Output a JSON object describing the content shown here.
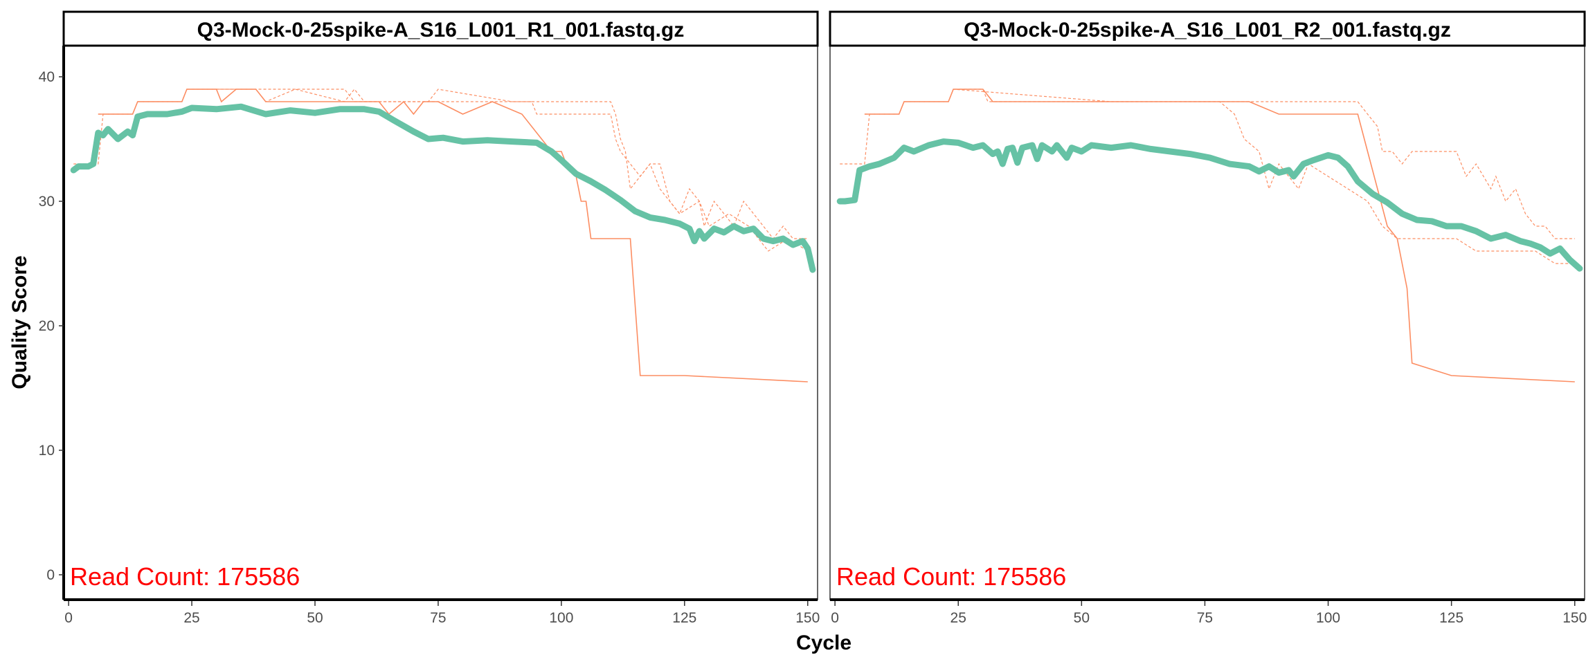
{
  "chart_data": {
    "type": "heatmap",
    "xlabel": "Cycle",
    "ylabel": "Quality Score",
    "xlim": [
      -1,
      152
    ],
    "ylim": [
      -2,
      42.5
    ],
    "x_ticks": [
      0,
      25,
      50,
      75,
      100,
      125,
      150
    ],
    "y_ticks": [
      0,
      10,
      20,
      30,
      40
    ],
    "colors": {
      "mean_line": "#66c2a5",
      "quartile_lines": "#fc8d62",
      "read_count_text": "#ff0000",
      "heat_low": "#f7f7f7",
      "heat_high": "#000000"
    },
    "panels": [
      {
        "title": "Q3-Mock-0-25spike-A_S16_L001_R1_001.fastq.gz",
        "read_count_text": "Read Count:  175586",
        "mean_quality": [
          [
            1,
            32.5
          ],
          [
            2,
            32.8
          ],
          [
            4,
            32.8
          ],
          [
            5,
            33.0
          ],
          [
            6,
            35.5
          ],
          [
            7,
            35.3
          ],
          [
            8,
            35.8
          ],
          [
            10,
            35.0
          ],
          [
            12,
            35.6
          ],
          [
            13,
            35.3
          ],
          [
            14,
            36.8
          ],
          [
            16,
            37.0
          ],
          [
            20,
            37.0
          ],
          [
            23,
            37.2
          ],
          [
            25,
            37.5
          ],
          [
            30,
            37.4
          ],
          [
            35,
            37.6
          ],
          [
            40,
            37.0
          ],
          [
            45,
            37.3
          ],
          [
            50,
            37.1
          ],
          [
            55,
            37.4
          ],
          [
            60,
            37.4
          ],
          [
            63,
            37.2
          ],
          [
            66,
            36.5
          ],
          [
            70,
            35.6
          ],
          [
            73,
            35.0
          ],
          [
            76,
            35.1
          ],
          [
            80,
            34.8
          ],
          [
            85,
            34.9
          ],
          [
            90,
            34.8
          ],
          [
            95,
            34.7
          ],
          [
            98,
            34.0
          ],
          [
            100,
            33.3
          ],
          [
            103,
            32.2
          ],
          [
            106,
            31.6
          ],
          [
            109,
            30.9
          ],
          [
            112,
            30.1
          ],
          [
            115,
            29.2
          ],
          [
            118,
            28.7
          ],
          [
            121,
            28.5
          ],
          [
            124,
            28.2
          ],
          [
            126,
            27.8
          ],
          [
            127,
            26.8
          ],
          [
            128,
            27.6
          ],
          [
            129,
            27.0
          ],
          [
            131,
            27.8
          ],
          [
            133,
            27.5
          ],
          [
            135,
            28.0
          ],
          [
            137,
            27.6
          ],
          [
            139,
            27.8
          ],
          [
            141,
            27.0
          ],
          [
            143,
            26.8
          ],
          [
            145,
            27.0
          ],
          [
            147,
            26.5
          ],
          [
            149,
            26.8
          ],
          [
            150,
            26.2
          ],
          [
            151,
            24.5
          ]
        ],
        "upper_quartile": [
          [
            6,
            37
          ],
          [
            13,
            37
          ],
          [
            14,
            38
          ],
          [
            23,
            38
          ],
          [
            24,
            39
          ],
          [
            38,
            39
          ],
          [
            40,
            38
          ],
          [
            46,
            39
          ],
          [
            56,
            38
          ],
          [
            58,
            39
          ],
          [
            60,
            38
          ],
          [
            73,
            38
          ],
          [
            75,
            39
          ],
          [
            90,
            38
          ],
          [
            110,
            38
          ],
          [
            111,
            37
          ],
          [
            112,
            35
          ],
          [
            113,
            34
          ],
          [
            114,
            31
          ],
          [
            116,
            32
          ],
          [
            118,
            33
          ],
          [
            120,
            33
          ],
          [
            122,
            30
          ],
          [
            124,
            29
          ],
          [
            126,
            31
          ],
          [
            128,
            30
          ],
          [
            129,
            28
          ],
          [
            131,
            30
          ],
          [
            133,
            29
          ],
          [
            135,
            28
          ],
          [
            137,
            30
          ],
          [
            139,
            29
          ],
          [
            141,
            28
          ],
          [
            143,
            27
          ],
          [
            145,
            28
          ],
          [
            147,
            27
          ],
          [
            150,
            27
          ]
        ],
        "median": [
          [
            6,
            37
          ],
          [
            13,
            37
          ],
          [
            14,
            38
          ],
          [
            23,
            38
          ],
          [
            24,
            39
          ],
          [
            30,
            39
          ],
          [
            31,
            38
          ],
          [
            34,
            39
          ],
          [
            38,
            39
          ],
          [
            40,
            38
          ],
          [
            63,
            38
          ],
          [
            65,
            37
          ],
          [
            68,
            38
          ],
          [
            70,
            37
          ],
          [
            72,
            38
          ],
          [
            75,
            38
          ],
          [
            80,
            37
          ],
          [
            86,
            38
          ],
          [
            92,
            37
          ],
          [
            96,
            35
          ],
          [
            98,
            34
          ],
          [
            100,
            34
          ],
          [
            101,
            33
          ],
          [
            103,
            32
          ],
          [
            104,
            30
          ],
          [
            105,
            30
          ],
          [
            106,
            27
          ],
          [
            112,
            27
          ],
          [
            114,
            27
          ],
          [
            116,
            16
          ],
          [
            125,
            16
          ],
          [
            150,
            15.5
          ]
        ],
        "lower_quartile": [
          [
            1,
            33
          ],
          [
            6,
            33
          ],
          [
            7,
            37
          ],
          [
            13,
            37
          ],
          [
            14,
            38
          ],
          [
            23,
            38
          ],
          [
            24,
            39
          ],
          [
            56,
            39
          ],
          [
            58,
            38
          ],
          [
            94,
            38
          ],
          [
            95,
            37
          ],
          [
            110,
            37
          ],
          [
            111,
            35
          ],
          [
            112,
            34
          ],
          [
            114,
            33
          ],
          [
            116,
            32
          ],
          [
            118,
            33
          ],
          [
            120,
            31
          ],
          [
            124,
            29
          ],
          [
            128,
            30
          ],
          [
            130,
            28
          ],
          [
            134,
            29
          ],
          [
            138,
            28
          ],
          [
            142,
            26
          ],
          [
            146,
            27
          ],
          [
            150,
            26
          ]
        ],
        "frequency_matrix": []
      },
      {
        "title": "Q3-Mock-0-25spike-A_S16_L001_R2_001.fastq.gz",
        "read_count_text": "Read Count:  175586",
        "mean_quality": [
          [
            1,
            30.0
          ],
          [
            2,
            30.0
          ],
          [
            4,
            30.1
          ],
          [
            5,
            32.5
          ],
          [
            7,
            32.8
          ],
          [
            9,
            33.0
          ],
          [
            12,
            33.5
          ],
          [
            14,
            34.3
          ],
          [
            16,
            34.0
          ],
          [
            19,
            34.5
          ],
          [
            22,
            34.8
          ],
          [
            25,
            34.7
          ],
          [
            28,
            34.3
          ],
          [
            30,
            34.5
          ],
          [
            32,
            33.8
          ],
          [
            33,
            34.0
          ],
          [
            34,
            33.0
          ],
          [
            35,
            34.2
          ],
          [
            36,
            34.3
          ],
          [
            37,
            33.1
          ],
          [
            38,
            34.3
          ],
          [
            40,
            34.5
          ],
          [
            41,
            33.4
          ],
          [
            42,
            34.5
          ],
          [
            44,
            34.0
          ],
          [
            45,
            34.5
          ],
          [
            47,
            33.5
          ],
          [
            48,
            34.3
          ],
          [
            50,
            34.0
          ],
          [
            52,
            34.5
          ],
          [
            56,
            34.3
          ],
          [
            60,
            34.5
          ],
          [
            64,
            34.2
          ],
          [
            68,
            34.0
          ],
          [
            72,
            33.8
          ],
          [
            76,
            33.5
          ],
          [
            80,
            33.0
          ],
          [
            84,
            32.8
          ],
          [
            86,
            32.4
          ],
          [
            88,
            32.8
          ],
          [
            90,
            32.3
          ],
          [
            92,
            32.5
          ],
          [
            93,
            32.0
          ],
          [
            95,
            33.0
          ],
          [
            97,
            33.3
          ],
          [
            100,
            33.7
          ],
          [
            102,
            33.5
          ],
          [
            104,
            32.8
          ],
          [
            106,
            31.6
          ],
          [
            109,
            30.6
          ],
          [
            112,
            29.9
          ],
          [
            115,
            29.0
          ],
          [
            118,
            28.5
          ],
          [
            121,
            28.4
          ],
          [
            124,
            28.0
          ],
          [
            127,
            28.0
          ],
          [
            130,
            27.6
          ],
          [
            133,
            27.0
          ],
          [
            136,
            27.3
          ],
          [
            139,
            26.8
          ],
          [
            141,
            26.6
          ],
          [
            143,
            26.3
          ],
          [
            145,
            25.8
          ],
          [
            147,
            26.2
          ],
          [
            149,
            25.3
          ],
          [
            151,
            24.6
          ]
        ],
        "upper_quartile": [
          [
            6,
            37
          ],
          [
            13,
            37
          ],
          [
            14,
            38
          ],
          [
            23,
            38
          ],
          [
            24,
            39
          ],
          [
            30,
            39
          ],
          [
            31,
            38
          ],
          [
            100,
            38
          ],
          [
            106,
            38
          ],
          [
            108,
            37
          ],
          [
            110,
            36
          ],
          [
            111,
            34
          ],
          [
            113,
            34
          ],
          [
            115,
            33
          ],
          [
            117,
            34
          ],
          [
            126,
            34
          ],
          [
            128,
            32
          ],
          [
            130,
            33
          ],
          [
            133,
            31
          ],
          [
            134,
            32
          ],
          [
            136,
            30
          ],
          [
            138,
            31
          ],
          [
            140,
            29
          ],
          [
            142,
            28
          ],
          [
            144,
            28
          ],
          [
            146,
            27
          ],
          [
            150,
            27
          ]
        ],
        "median": [
          [
            6,
            37
          ],
          [
            13,
            37
          ],
          [
            14,
            38
          ],
          [
            23,
            38
          ],
          [
            24,
            39
          ],
          [
            30,
            39
          ],
          [
            32,
            38
          ],
          [
            84,
            38
          ],
          [
            90,
            37
          ],
          [
            106,
            37
          ],
          [
            108,
            34
          ],
          [
            110,
            31
          ],
          [
            112,
            28
          ],
          [
            114,
            27
          ],
          [
            116,
            23
          ],
          [
            117,
            17
          ],
          [
            125,
            16
          ],
          [
            150,
            15.5
          ]
        ],
        "lower_quartile": [
          [
            1,
            33
          ],
          [
            6,
            33
          ],
          [
            7,
            37
          ],
          [
            13,
            37
          ],
          [
            14,
            38
          ],
          [
            23,
            38
          ],
          [
            24,
            39
          ],
          [
            56,
            38
          ],
          [
            78,
            38
          ],
          [
            81,
            37
          ],
          [
            83,
            35
          ],
          [
            86,
            34
          ],
          [
            88,
            31
          ],
          [
            90,
            33
          ],
          [
            92,
            32
          ],
          [
            94,
            31
          ],
          [
            96,
            33
          ],
          [
            100,
            32
          ],
          [
            104,
            31
          ],
          [
            108,
            30
          ],
          [
            111,
            28
          ],
          [
            114,
            27
          ],
          [
            120,
            27
          ],
          [
            126,
            27
          ],
          [
            130,
            26
          ],
          [
            135,
            26
          ],
          [
            142,
            26
          ],
          [
            146,
            25
          ],
          [
            150,
            25
          ]
        ],
        "frequency_matrix": []
      }
    ]
  }
}
